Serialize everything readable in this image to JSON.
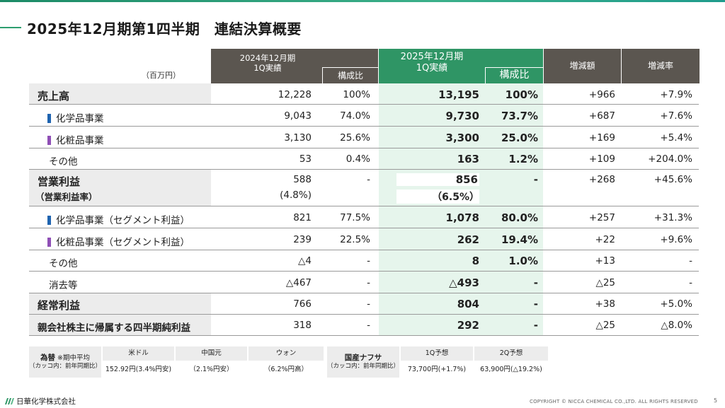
{
  "title": "2025年12月期第1四半期　連結決算概要",
  "unit": "（百万円）",
  "header": {
    "prev_period": "2024年12月期\n1Q実績",
    "prev_ratio": "構成比",
    "curr_period": "2025年12月期\n1Q実績",
    "curr_ratio": "構成比",
    "change_amount": "増減額",
    "change_rate": "増減率"
  },
  "colors": {
    "header_dark": "#5b5650",
    "header_green": "#2f9565",
    "highlight_bg": "#e6f5ec",
    "chemical_mark": "#1f64b0",
    "cosmetic_mark": "#8f4fb6"
  },
  "rows": [
    {
      "label": "売上高",
      "prev": "12,228",
      "prev_ratio": "100%",
      "curr": "13,195",
      "curr_ratio": "100%",
      "diff": "+966",
      "rate": "+7.9%"
    },
    {
      "label": "化学品事業",
      "prev": "9,043",
      "prev_ratio": "74.0%",
      "curr": "9,730",
      "curr_ratio": "73.7%",
      "diff": "+687",
      "rate": "+7.6%"
    },
    {
      "label": "化粧品事業",
      "prev": "3,130",
      "prev_ratio": "25.6%",
      "curr": "3,300",
      "curr_ratio": "25.0%",
      "diff": "+169",
      "rate": "+5.4%"
    },
    {
      "label": "その他",
      "prev": "53",
      "prev_ratio": "0.4%",
      "curr": "163",
      "curr_ratio": "1.2%",
      "diff": "+109",
      "rate": "+204.0%"
    },
    {
      "label": "営業利益",
      "label2": "（営業利益率）",
      "prev": "588",
      "prev2": "(4.8%)",
      "prev_ratio": "-",
      "curr": "856",
      "curr2": "（6.5%）",
      "curr_ratio": "-",
      "diff": "+268",
      "rate": "+45.6%"
    },
    {
      "label": "化学品事業（セグメント利益）",
      "prev": "821",
      "prev_ratio": "77.5%",
      "curr": "1,078",
      "curr_ratio": "80.0%",
      "diff": "+257",
      "rate": "+31.3%"
    },
    {
      "label": "化粧品事業（セグメント利益）",
      "prev": "239",
      "prev_ratio": "22.5%",
      "curr": "262",
      "curr_ratio": "19.4%",
      "diff": "+22",
      "rate": "+9.6%"
    },
    {
      "label": "その他",
      "prev": "△4",
      "prev_ratio": "-",
      "curr": "8",
      "curr_ratio": "1.0%",
      "diff": "+13",
      "rate": "-"
    },
    {
      "label": "消去等",
      "prev": "△467",
      "prev_ratio": "-",
      "curr": "△493",
      "curr_ratio": "-",
      "diff": "△25",
      "rate": "-"
    },
    {
      "label": "経常利益",
      "prev": "766",
      "prev_ratio": "-",
      "curr": "804",
      "curr_ratio": "-",
      "diff": "+38",
      "rate": "+5.0%"
    },
    {
      "label": "親会社株主に帰属する四半期純利益",
      "prev": "318",
      "prev_ratio": "-",
      "curr": "292",
      "curr_ratio": "-",
      "diff": "△25",
      "rate": "△8.0%"
    }
  ],
  "fx": {
    "label": "為替",
    "label_note": "※期中平均",
    "label_sub": "（カッコ内：前年同期比）",
    "usd_head": "米ドル",
    "usd_val": "152.92円(3.4%円安)",
    "cny_head": "中国元",
    "cny_val": "（2.1%円安）",
    "krw_head": "ウォン",
    "krw_val": "（6.2%円高）"
  },
  "naphtha": {
    "label": "国産ナフサ",
    "label_sub": "（カッコ内：前年同期比）",
    "q1_head": "1Q予想",
    "q1_val": "73,700円(+1.7%)",
    "q2_head": "2Q予想",
    "q2_val": "63,900円(△19.2%)"
  },
  "footer": {
    "company": "日華化学株式会社",
    "copyright": "COPYRIGHT © NICCA CHEMICAL CO.,LTD. ALL RIGHTS RESERVED",
    "page": "5"
  }
}
